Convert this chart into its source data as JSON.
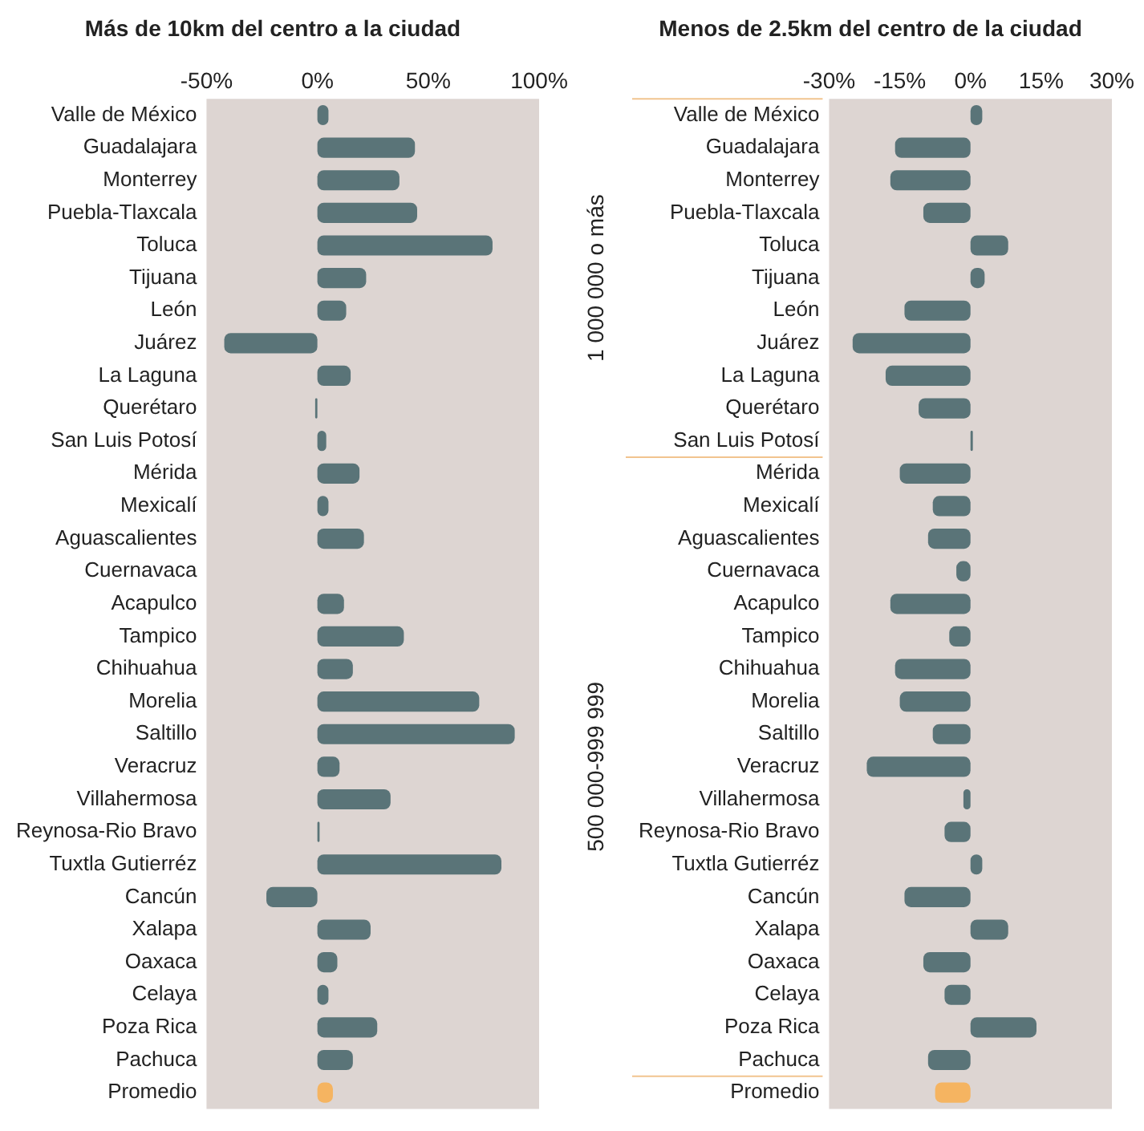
{
  "chart_data": [
    {
      "type": "bar",
      "orientation": "horizontal",
      "title": "Más de 10km del centro a la ciudad",
      "categories": [
        "Valle de México",
        "Guadalajara",
        "Monterrey",
        "Puebla-Tlaxcala",
        "Toluca",
        "Tijuana",
        "León",
        "Juárez",
        "La Laguna",
        "Querétaro",
        "San Luis Potosí",
        "Mérida",
        "Mexicalí",
        "Aguascalientes",
        "Cuernavaca",
        "Acapulco",
        "Tampico",
        "Chihuahua",
        "Morelia",
        "Saltillo",
        "Veracruz",
        "Villahermosa",
        "Reynosa-Rio Bravo",
        "Tuxtla Gutierréz",
        "Cancún",
        "Xalapa",
        "Oaxaca",
        "Celaya",
        "Poza Rica",
        "Pachuca",
        "Promedio"
      ],
      "values": [
        5,
        44,
        37,
        45,
        79,
        22,
        13,
        -42,
        15,
        -1,
        4,
        19,
        5,
        21,
        0,
        12,
        39,
        16,
        73,
        89,
        10,
        33,
        1,
        83,
        -23,
        24,
        9,
        5,
        27,
        16,
        7
      ],
      "colors": [
        "#5a7478",
        "#5a7478",
        "#5a7478",
        "#5a7478",
        "#5a7478",
        "#5a7478",
        "#5a7478",
        "#5a7478",
        "#5a7478",
        "#5a7478",
        "#5a7478",
        "#5a7478",
        "#5a7478",
        "#5a7478",
        "#5a7478",
        "#5a7478",
        "#5a7478",
        "#5a7478",
        "#5a7478",
        "#5a7478",
        "#5a7478",
        "#5a7478",
        "#5a7478",
        "#5a7478",
        "#5a7478",
        "#5a7478",
        "#5a7478",
        "#5a7478",
        "#5a7478",
        "#5a7478",
        "#f5b461"
      ],
      "xlim": [
        -50,
        100
      ],
      "xticks": [
        {
          "value": -50,
          "label": "-50%"
        },
        {
          "value": 0,
          "label": "0%"
        },
        {
          "value": 50,
          "label": "50%"
        },
        {
          "value": 100,
          "label": "100%"
        }
      ],
      "grid": false,
      "legend": false
    },
    {
      "type": "bar",
      "orientation": "horizontal",
      "title": "Menos de 2.5km del centro de la ciudad",
      "categories": [
        "Valle de México",
        "Guadalajara",
        "Monterrey",
        "Puebla-Tlaxcala",
        "Toluca",
        "Tijuana",
        "León",
        "Juárez",
        "La Laguna",
        "Querétaro",
        "San Luis Potosí",
        "Mérida",
        "Mexicalí",
        "Aguascalientes",
        "Cuernavaca",
        "Acapulco",
        "Tampico",
        "Chihuahua",
        "Morelia",
        "Saltillo",
        "Veracruz",
        "Villahermosa",
        "Reynosa-Rio Bravo",
        "Tuxtla Gutierréz",
        "Cancún",
        "Xalapa",
        "Oaxaca",
        "Celaya",
        "Poza Rica",
        "Pachuca",
        "Promedio"
      ],
      "values": [
        2.5,
        -16,
        -17,
        -10,
        8,
        3,
        -14,
        -25,
        -18,
        -11,
        0.5,
        -15,
        -8,
        -9,
        -3,
        -17,
        -4.5,
        -16,
        -15,
        -8,
        -22,
        -1.5,
        -5.5,
        2.5,
        -14,
        8,
        -10,
        -5.5,
        14,
        -9,
        -7.5
      ],
      "colors": [
        "#5a7478",
        "#5a7478",
        "#5a7478",
        "#5a7478",
        "#5a7478",
        "#5a7478",
        "#5a7478",
        "#5a7478",
        "#5a7478",
        "#5a7478",
        "#5a7478",
        "#5a7478",
        "#5a7478",
        "#5a7478",
        "#5a7478",
        "#5a7478",
        "#5a7478",
        "#5a7478",
        "#5a7478",
        "#5a7478",
        "#5a7478",
        "#5a7478",
        "#5a7478",
        "#5a7478",
        "#5a7478",
        "#5a7478",
        "#5a7478",
        "#5a7478",
        "#5a7478",
        "#5a7478",
        "#f5b461"
      ],
      "xlim": [
        -30,
        30
      ],
      "xticks": [
        {
          "value": -30,
          "label": "-30%"
        },
        {
          "value": -15,
          "label": "-15%"
        },
        {
          "value": 0,
          "label": "0%"
        },
        {
          "value": 15,
          "label": "15%"
        },
        {
          "value": 30,
          "label": "30%"
        }
      ],
      "grid": false,
      "legend": false,
      "annotations": [
        "1 000 000 o más",
        "500 000-999 999"
      ]
    }
  ]
}
